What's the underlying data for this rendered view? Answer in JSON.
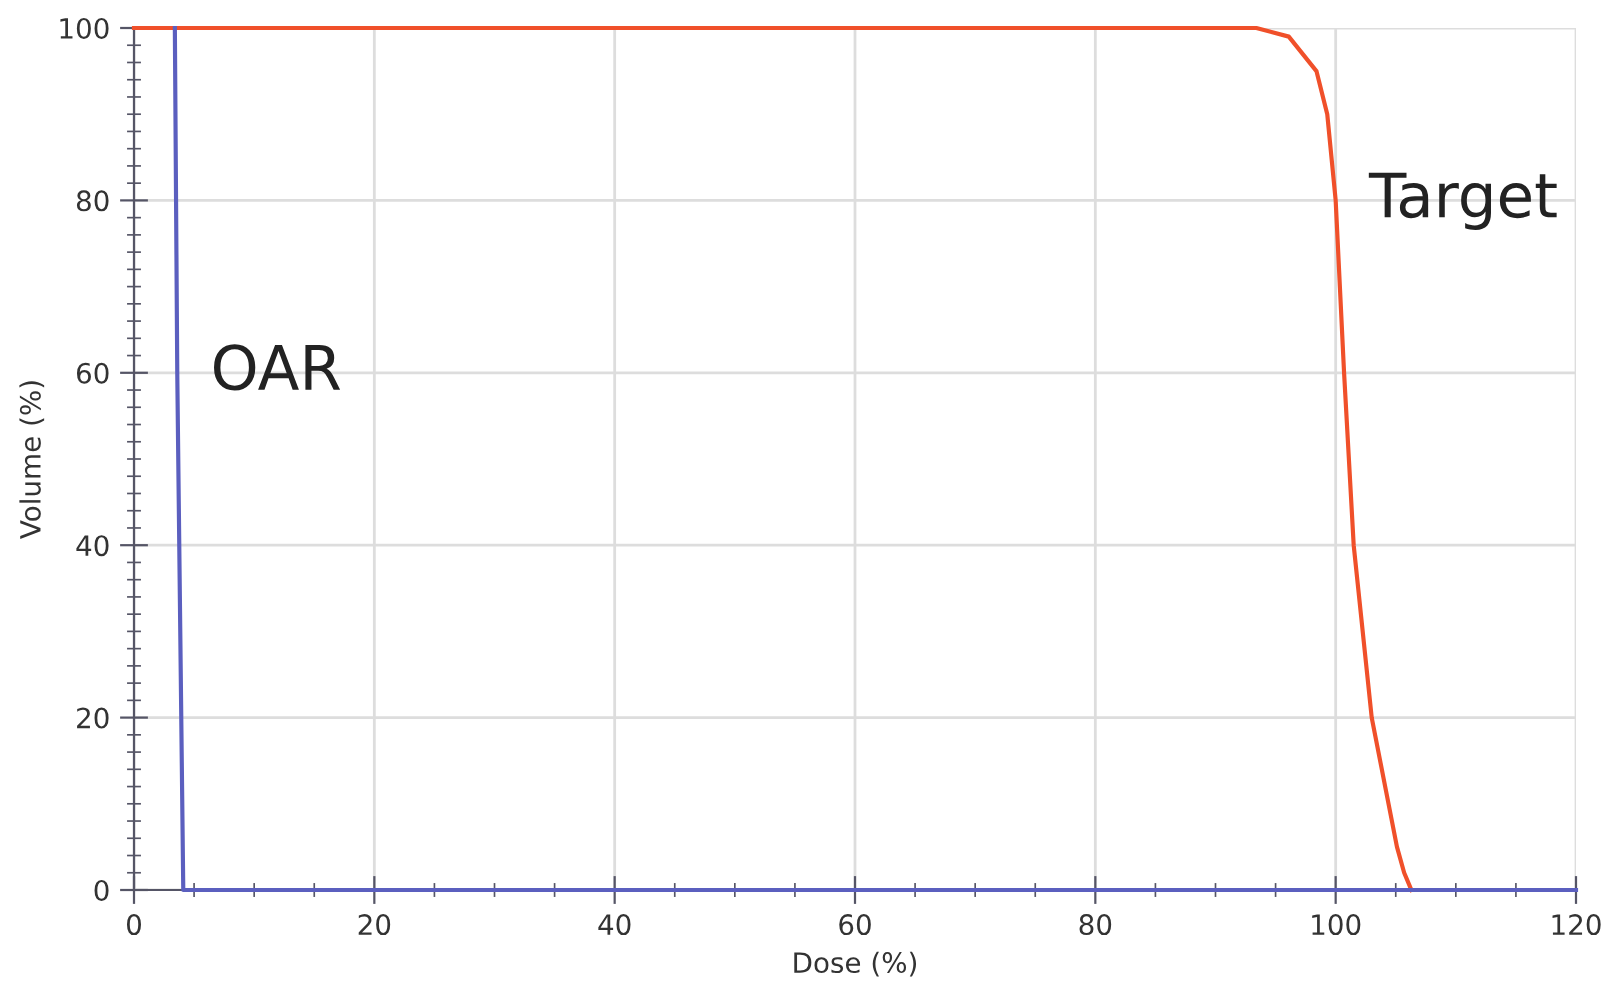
{
  "chart_data": {
    "type": "line",
    "xlabel": "Dose (%)",
    "ylabel": "Volume (%)",
    "xlim": [
      0,
      120
    ],
    "ylim": [
      0,
      100
    ],
    "xticks": [
      0,
      20,
      40,
      60,
      80,
      100,
      120
    ],
    "yticks": [
      0,
      20,
      40,
      60,
      80,
      100
    ],
    "grid": true,
    "marker": "none",
    "line_style": "solid",
    "series": [
      {
        "name": "Target",
        "color": "#f0502a",
        "x": [
          0,
          93.4,
          96.1,
          98.4,
          99.3,
          100.0,
          100.7,
          101.5,
          103.0,
          104.4,
          105.1,
          105.7,
          106.3
        ],
        "values": [
          100,
          100,
          99,
          95,
          90,
          80,
          60,
          40,
          20,
          10,
          5,
          2,
          0
        ]
      },
      {
        "name": "OAR",
        "color": "#5b5fbf",
        "x": [
          3.4,
          3.6,
          4.1,
          120
        ],
        "values": [
          100,
          60,
          0,
          0
        ]
      }
    ]
  }
}
